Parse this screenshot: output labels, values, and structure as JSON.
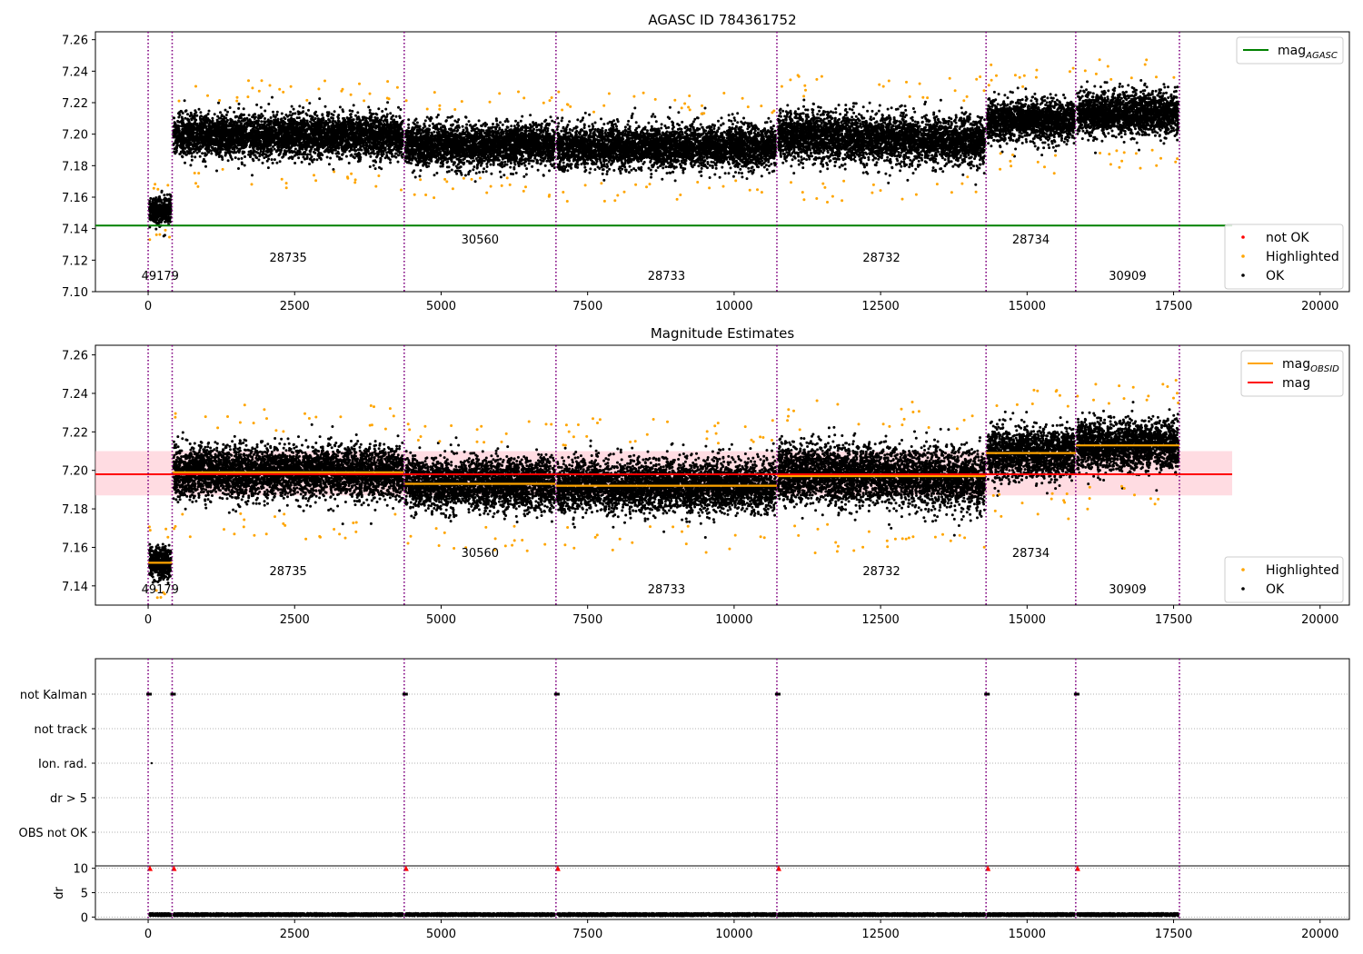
{
  "colors": {
    "ok": "#000000",
    "highlighted": "#ffa500",
    "not_ok": "#ff0000",
    "agasc_line": "#008000",
    "obsid_line": "#ffa500",
    "mag_line": "#ff0000",
    "mag_band": "#ffc0cb",
    "obsid_boundary": "#800080"
  },
  "chart_data": [
    {
      "type": "scatter",
      "title": "AGASC ID 784361752",
      "xlim": [
        -900,
        20500
      ],
      "ylim": [
        7.1,
        7.265
      ],
      "xticks": [
        0,
        2500,
        5000,
        7500,
        10000,
        12500,
        15000,
        17500,
        20000
      ],
      "yticks": [
        7.1,
        7.12,
        7.14,
        7.16,
        7.18,
        7.2,
        7.22,
        7.24,
        7.26
      ],
      "legend_upper": {
        "placement": "upper-right",
        "entries": [
          {
            "label": "mag",
            "subscript": "AGASC",
            "color": "#008000"
          }
        ]
      },
      "legend_lower": {
        "placement": "lower-right",
        "entries": [
          {
            "label": "not OK",
            "color": "#ff0000"
          },
          {
            "label": "Highlighted",
            "color": "#ffa500"
          },
          {
            "label": "OK",
            "color": "#000000"
          }
        ]
      },
      "mag_agasc": 7.142
    },
    {
      "type": "scatter",
      "title": "Magnitude Estimates",
      "xlim": [
        -900,
        20500
      ],
      "ylim": [
        7.13,
        7.265
      ],
      "xticks": [
        0,
        2500,
        5000,
        7500,
        10000,
        12500,
        15000,
        17500,
        20000
      ],
      "yticks": [
        7.14,
        7.16,
        7.18,
        7.2,
        7.22,
        7.24,
        7.26
      ],
      "legend_upper": {
        "placement": "upper-right",
        "entries": [
          {
            "label": "mag",
            "subscript": "OBSID",
            "color": "#ffa500"
          },
          {
            "label": "mag",
            "color": "#ff0000"
          }
        ]
      },
      "legend_lower": {
        "placement": "lower-right",
        "entries": [
          {
            "label": "Highlighted",
            "color": "#ffa500"
          },
          {
            "label": "OK",
            "color": "#000000"
          }
        ]
      },
      "mag": 7.198,
      "mag_band": [
        7.187,
        7.21
      ]
    },
    {
      "type": "scatter",
      "categories": [
        "not Kalman",
        "not track",
        "Ion. rad.",
        "dr > 5",
        "OBS not OK"
      ],
      "xlim": [
        -900,
        20500
      ]
    },
    {
      "type": "scatter",
      "ylabel": "dr",
      "xlim": [
        -900,
        20500
      ],
      "ylim": [
        -0.5,
        10.5
      ],
      "yticks": [
        0,
        5,
        10
      ],
      "xticks": [
        0,
        2500,
        5000,
        7500,
        10000,
        12500,
        15000,
        17500,
        20000
      ],
      "dr_flag_value": 10
    }
  ],
  "obsids": [
    {
      "id": "49179",
      "start": 0,
      "end": 410,
      "level": 7.152,
      "spread": 0.004,
      "label_row": 3
    },
    {
      "id": "28735",
      "start": 410,
      "end": 4370,
      "level": 7.199,
      "spread": 0.0065,
      "label_row": 2
    },
    {
      "id": "30560",
      "start": 4370,
      "end": 6960,
      "level": 7.193,
      "spread": 0.0065,
      "label_row": 1
    },
    {
      "id": "28733",
      "start": 6960,
      "end": 10730,
      "level": 7.192,
      "spread": 0.0065,
      "label_row": 3
    },
    {
      "id": "28732",
      "start": 10730,
      "end": 14300,
      "level": 7.197,
      "spread": 0.0075,
      "label_row": 2
    },
    {
      "id": "28734",
      "start": 14300,
      "end": 15830,
      "level": 7.209,
      "spread": 0.0065,
      "label_row": 1
    },
    {
      "id": "30909",
      "start": 15830,
      "end": 17600,
      "level": 7.213,
      "spread": 0.0065,
      "label_row": 3
    }
  ],
  "obsid_boundaries": [
    0,
    410,
    4370,
    6960,
    10730,
    14300,
    15830,
    17600
  ]
}
